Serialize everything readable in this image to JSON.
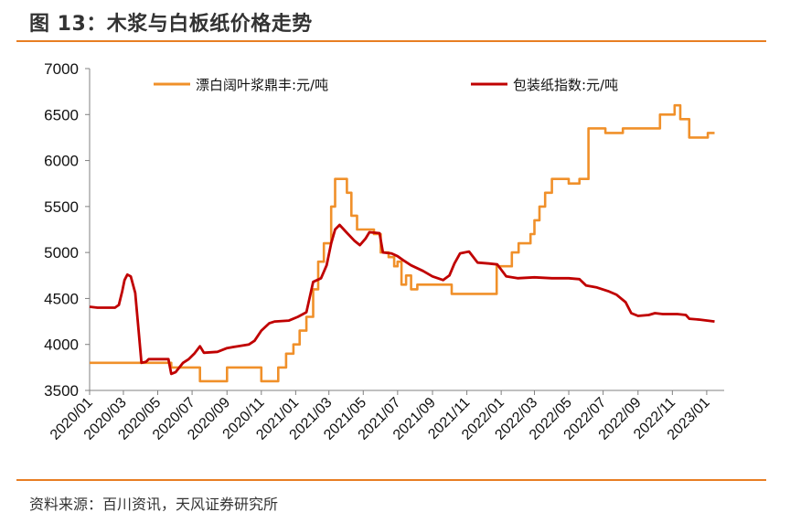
{
  "figure": {
    "title": "图 13：木浆与白板纸价格走势",
    "source": "资料来源：百川资讯，天风证券研究所"
  },
  "colors": {
    "accent": "#e87e23",
    "pulp": "#f0902a",
    "board": "#c00000"
  },
  "chart_data": {
    "type": "line",
    "title": "",
    "xlabel": "",
    "ylabel": "",
    "ylim": [
      3500,
      7000
    ],
    "yticks": [
      "3500",
      "4000",
      "4500",
      "5000",
      "5500",
      "6000",
      "6500",
      "7000"
    ],
    "xlim": [
      "2020/01",
      "2023/02"
    ],
    "xticks": [
      "2020/01",
      "2020/03",
      "2020/05",
      "2020/07",
      "2020/09",
      "2020/11",
      "2021/01",
      "2021/03",
      "2021/05",
      "2021/07",
      "2021/09",
      "2021/11",
      "2022/01",
      "2022/03",
      "2022/05",
      "2022/07",
      "2022/09",
      "2022/11",
      "2023/01"
    ],
    "legend_position": "top",
    "grid": false,
    "series": [
      {
        "name": "漂白阔叶浆鼎丰:元/吨",
        "color": "#f0902a",
        "step": true,
        "points": [
          [
            "2020-01-01",
            3800
          ],
          [
            "2020-04-05",
            3800
          ],
          [
            "2020-04-20",
            3800
          ],
          [
            "2020-05-10",
            3800
          ],
          [
            "2020-05-25",
            3750
          ],
          [
            "2020-06-15",
            3750
          ],
          [
            "2020-06-30",
            3750
          ],
          [
            "2020-07-15",
            3600
          ],
          [
            "2020-08-15",
            3600
          ],
          [
            "2020-09-01",
            3750
          ],
          [
            "2020-10-20",
            3750
          ],
          [
            "2020-11-01",
            3600
          ],
          [
            "2020-11-20",
            3600
          ],
          [
            "2020-12-01",
            3750
          ],
          [
            "2020-12-15",
            3900
          ],
          [
            "2020-12-28",
            4000
          ],
          [
            "2021-01-08",
            4150
          ],
          [
            "2021-01-20",
            4300
          ],
          [
            "2021-02-01",
            4600
          ],
          [
            "2021-02-10",
            4900
          ],
          [
            "2021-02-20",
            5100
          ],
          [
            "2021-03-05",
            5500
          ],
          [
            "2021-03-12",
            5800
          ],
          [
            "2021-03-28",
            5800
          ],
          [
            "2021-04-02",
            5650
          ],
          [
            "2021-04-10",
            5400
          ],
          [
            "2021-04-20",
            5250
          ],
          [
            "2021-05-10",
            5250
          ],
          [
            "2021-05-20",
            5200
          ],
          [
            "2021-06-01",
            5000
          ],
          [
            "2021-06-15",
            4950
          ],
          [
            "2021-06-25",
            4850
          ],
          [
            "2021-07-01",
            4900
          ],
          [
            "2021-07-08",
            4650
          ],
          [
            "2021-07-16",
            4750
          ],
          [
            "2021-07-25",
            4600
          ],
          [
            "2021-08-05",
            4650
          ],
          [
            "2021-09-25",
            4650
          ],
          [
            "2021-10-05",
            4550
          ],
          [
            "2021-12-22",
            4550
          ],
          [
            "2021-12-24",
            4850
          ],
          [
            "2022-01-10",
            4850
          ],
          [
            "2022-01-20",
            5000
          ],
          [
            "2022-02-01",
            5100
          ],
          [
            "2022-02-15",
            5100
          ],
          [
            "2022-02-22",
            5200
          ],
          [
            "2022-03-01",
            5350
          ],
          [
            "2022-03-10",
            5500
          ],
          [
            "2022-03-20",
            5650
          ],
          [
            "2022-04-01",
            5800
          ],
          [
            "2022-04-25",
            5800
          ],
          [
            "2022-05-01",
            5750
          ],
          [
            "2022-05-15",
            5750
          ],
          [
            "2022-05-20",
            5800
          ],
          [
            "2022-06-01",
            5800
          ],
          [
            "2022-06-05",
            6350
          ],
          [
            "2022-06-28",
            6350
          ],
          [
            "2022-07-05",
            6300
          ],
          [
            "2022-07-28",
            6300
          ],
          [
            "2022-08-05",
            6350
          ],
          [
            "2022-10-08",
            6350
          ],
          [
            "2022-10-10",
            6500
          ],
          [
            "2022-10-30",
            6500
          ],
          [
            "2022-11-05",
            6600
          ],
          [
            "2022-11-12",
            6600
          ],
          [
            "2022-11-15",
            6450
          ],
          [
            "2022-11-28",
            6450
          ],
          [
            "2022-12-01",
            6250
          ],
          [
            "2022-12-25",
            6250
          ],
          [
            "2023-01-03",
            6300
          ],
          [
            "2023-01-15",
            6300
          ]
        ]
      },
      {
        "name": "包装纸指数:元/吨",
        "color": "#c00000",
        "step": false,
        "points": [
          [
            "2020-01-01",
            4410
          ],
          [
            "2020-01-15",
            4400
          ],
          [
            "2020-02-15",
            4400
          ],
          [
            "2020-02-22",
            4430
          ],
          [
            "2020-02-28",
            4580
          ],
          [
            "2020-03-03",
            4700
          ],
          [
            "2020-03-08",
            4760
          ],
          [
            "2020-03-14",
            4740
          ],
          [
            "2020-03-22",
            4560
          ],
          [
            "2020-03-28",
            4150
          ],
          [
            "2020-04-02",
            3800
          ],
          [
            "2020-04-10",
            3810
          ],
          [
            "2020-04-15",
            3840
          ],
          [
            "2020-05-20",
            3840
          ],
          [
            "2020-05-25",
            3680
          ],
          [
            "2020-06-02",
            3700
          ],
          [
            "2020-06-15",
            3800
          ],
          [
            "2020-06-25",
            3840
          ],
          [
            "2020-07-05",
            3900
          ],
          [
            "2020-07-15",
            3980
          ],
          [
            "2020-07-22",
            3910
          ],
          [
            "2020-08-15",
            3920
          ],
          [
            "2020-09-01",
            3960
          ],
          [
            "2020-09-20",
            3980
          ],
          [
            "2020-10-10",
            4000
          ],
          [
            "2020-10-20",
            4040
          ],
          [
            "2020-11-01",
            4150
          ],
          [
            "2020-11-15",
            4230
          ],
          [
            "2020-11-25",
            4250
          ],
          [
            "2020-12-20",
            4260
          ],
          [
            "2021-01-05",
            4300
          ],
          [
            "2021-01-20",
            4350
          ],
          [
            "2021-02-01",
            4680
          ],
          [
            "2021-02-15",
            4720
          ],
          [
            "2021-02-25",
            4860
          ],
          [
            "2021-03-05",
            5100
          ],
          [
            "2021-03-12",
            5250
          ],
          [
            "2021-03-20",
            5300
          ],
          [
            "2021-04-01",
            5220
          ],
          [
            "2021-04-15",
            5130
          ],
          [
            "2021-04-25",
            5080
          ],
          [
            "2021-05-05",
            5150
          ],
          [
            "2021-05-12",
            5220
          ],
          [
            "2021-05-30",
            5210
          ],
          [
            "2021-06-05",
            5000
          ],
          [
            "2021-06-20",
            4990
          ],
          [
            "2021-07-01",
            4960
          ],
          [
            "2021-07-10",
            4920
          ],
          [
            "2021-07-25",
            4860
          ],
          [
            "2021-08-15",
            4800
          ],
          [
            "2021-09-01",
            4740
          ],
          [
            "2021-09-20",
            4700
          ],
          [
            "2021-10-01",
            4750
          ],
          [
            "2021-10-10",
            4880
          ],
          [
            "2021-10-20",
            4990
          ],
          [
            "2021-11-05",
            5010
          ],
          [
            "2021-11-20",
            4890
          ],
          [
            "2021-12-10",
            4880
          ],
          [
            "2021-12-25",
            4870
          ],
          [
            "2022-01-10",
            4740
          ],
          [
            "2022-01-30",
            4720
          ],
          [
            "2022-03-01",
            4730
          ],
          [
            "2022-04-01",
            4720
          ],
          [
            "2022-05-01",
            4720
          ],
          [
            "2022-05-20",
            4710
          ],
          [
            "2022-06-01",
            4640
          ],
          [
            "2022-06-20",
            4620
          ],
          [
            "2022-07-10",
            4580
          ],
          [
            "2022-07-25",
            4540
          ],
          [
            "2022-08-10",
            4460
          ],
          [
            "2022-08-20",
            4340
          ],
          [
            "2022-09-01",
            4310
          ],
          [
            "2022-09-20",
            4320
          ],
          [
            "2022-10-01",
            4340
          ],
          [
            "2022-10-15",
            4330
          ],
          [
            "2022-11-10",
            4330
          ],
          [
            "2022-11-25",
            4320
          ],
          [
            "2022-12-01",
            4280
          ],
          [
            "2022-12-20",
            4270
          ],
          [
            "2023-01-15",
            4250
          ]
        ]
      }
    ]
  }
}
